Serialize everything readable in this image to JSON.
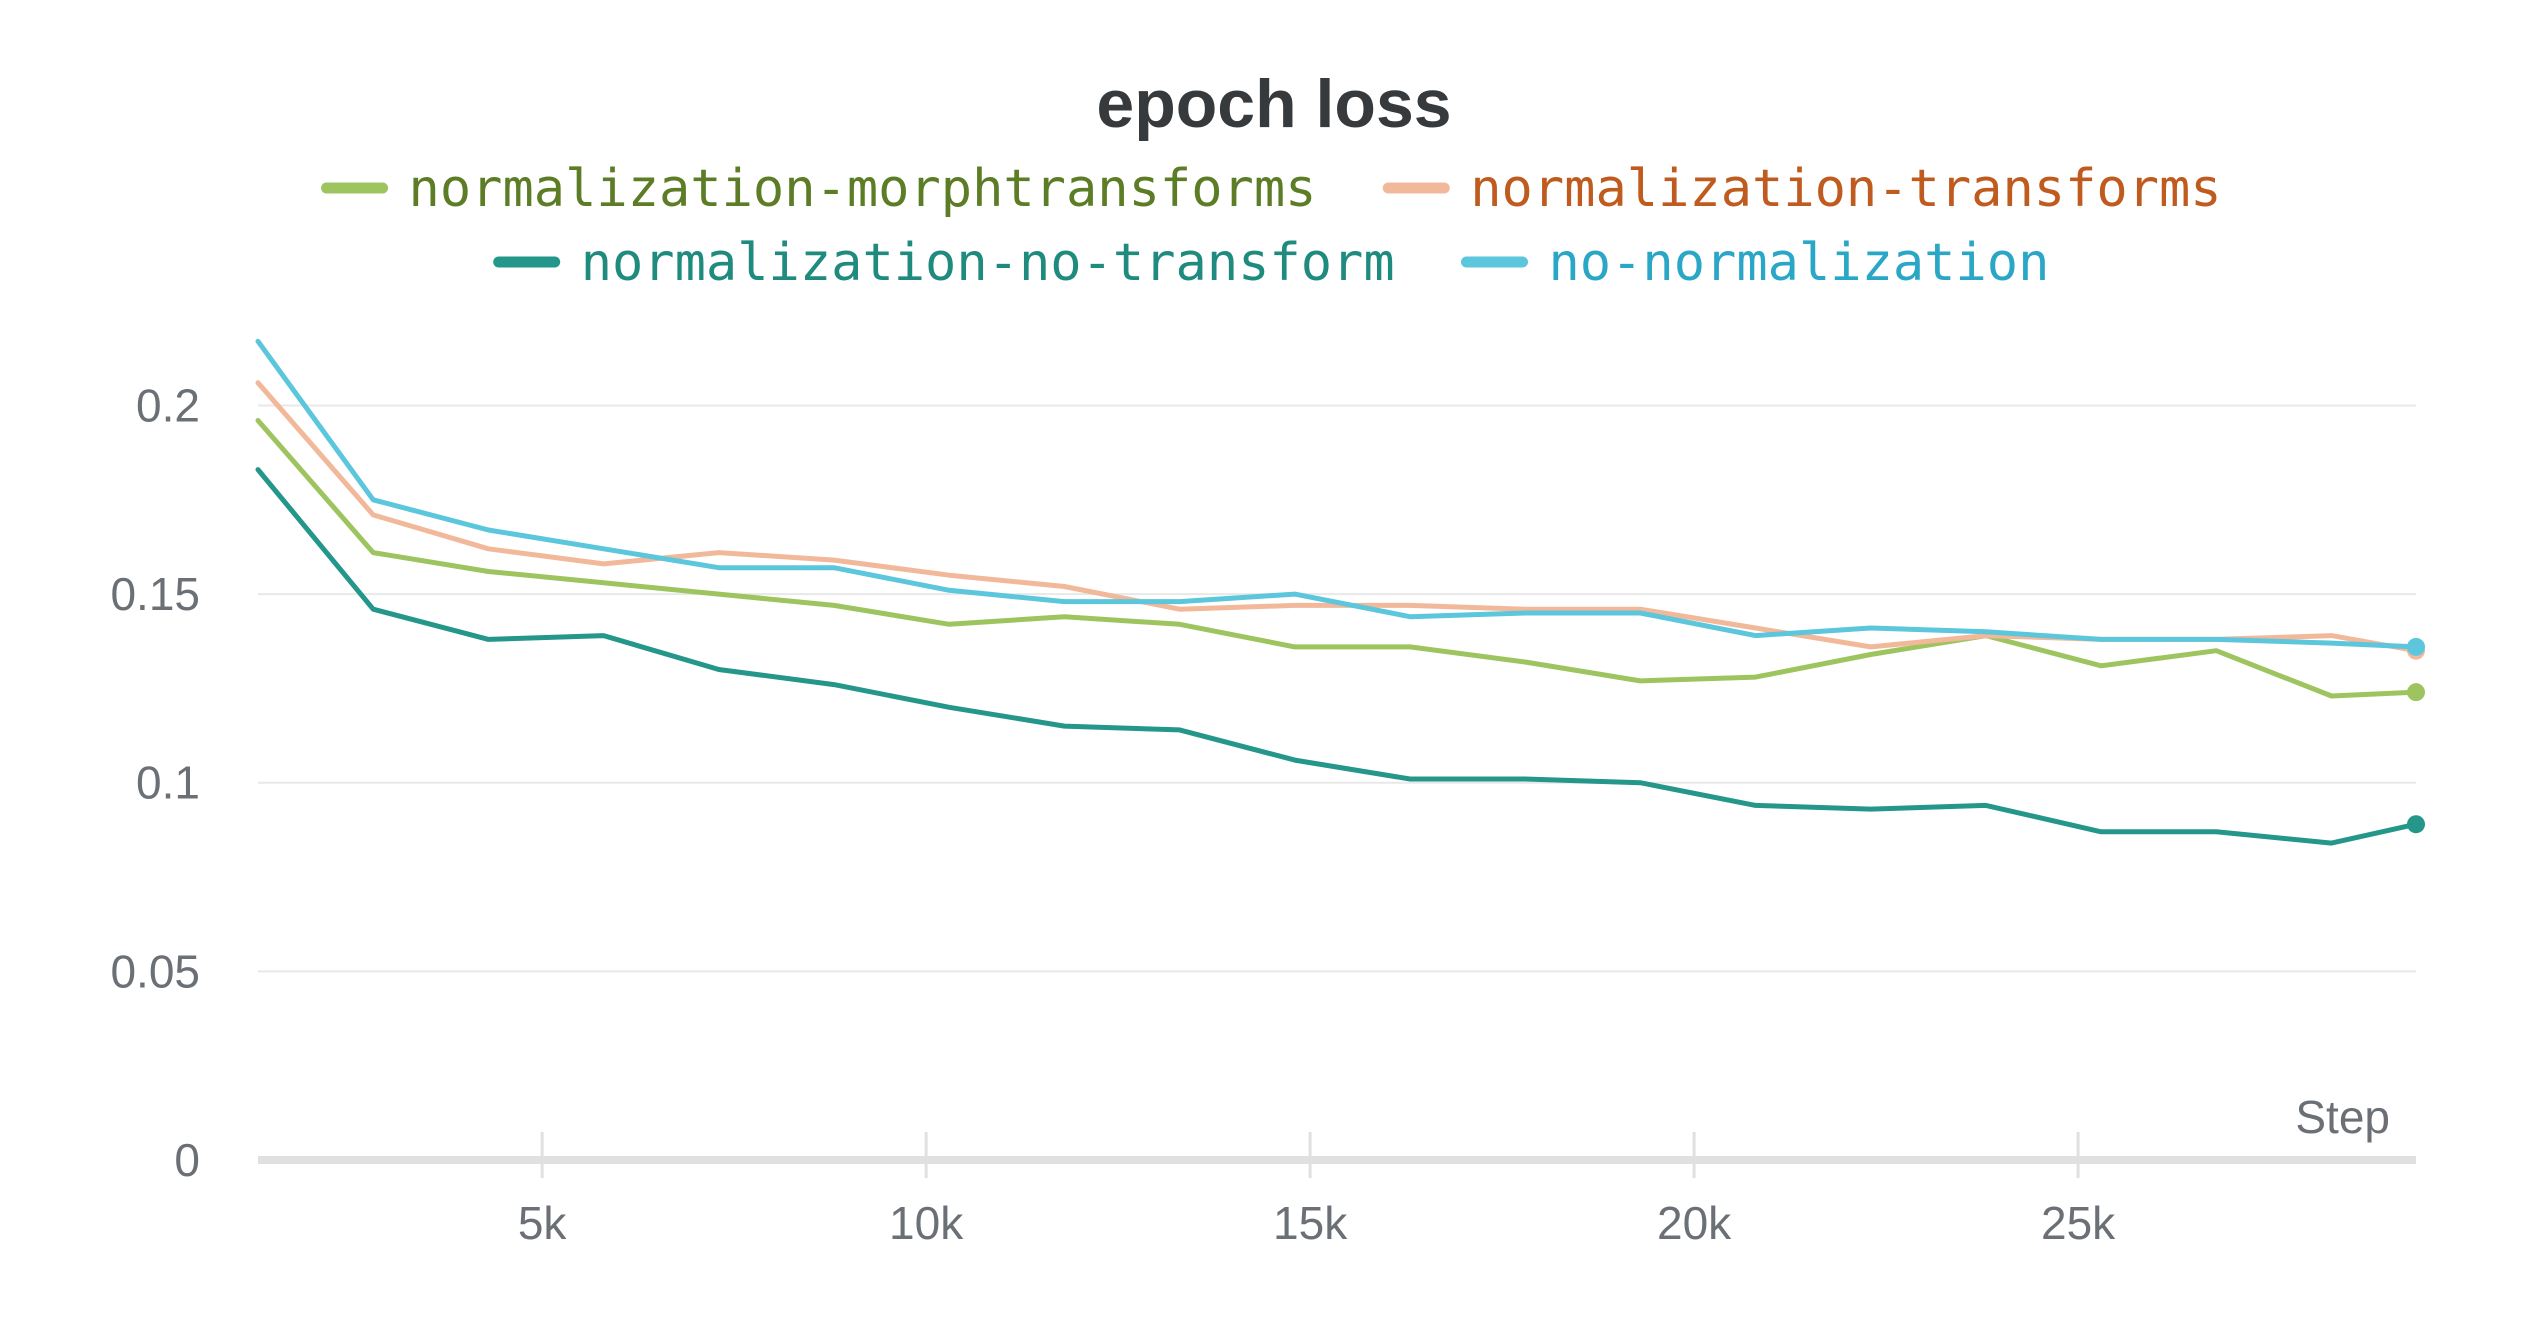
{
  "chart_data": {
    "type": "line",
    "title": "epoch loss",
    "xlabel": "Step",
    "ylabel": "",
    "xlim": [
      1300,
      29400
    ],
    "ylim": [
      0,
      0.22
    ],
    "x_ticks": [
      {
        "value": 5000,
        "label": "5k"
      },
      {
        "value": 10000,
        "label": "10k"
      },
      {
        "value": 15000,
        "label": "15k"
      },
      {
        "value": 20000,
        "label": "20k"
      },
      {
        "value": 25000,
        "label": "25k"
      }
    ],
    "y_ticks": [
      {
        "value": 0,
        "label": "0"
      },
      {
        "value": 0.05,
        "label": "0.05"
      },
      {
        "value": 0.1,
        "label": "0.1"
      },
      {
        "value": 0.15,
        "label": "0.15"
      },
      {
        "value": 0.2,
        "label": "0.2"
      }
    ],
    "grid": true,
    "legend_position": "top-center",
    "x": [
      1300,
      2800,
      4300,
      5800,
      7300,
      8800,
      10300,
      11800,
      13300,
      14800,
      16300,
      17800,
      19300,
      20800,
      22300,
      23800,
      25300,
      26800,
      28300,
      29400
    ],
    "series": [
      {
        "name": "normalization-morphtransforms",
        "color": "#9dc45f",
        "text_color": "#5c7d25",
        "end_marker": true,
        "values": [
          0.196,
          0.161,
          0.156,
          0.153,
          0.15,
          0.147,
          0.142,
          0.144,
          0.142,
          0.136,
          0.136,
          0.132,
          0.127,
          0.128,
          0.134,
          0.139,
          0.131,
          0.135,
          0.123,
          0.124
        ]
      },
      {
        "name": "normalization-transforms",
        "color": "#f2b89a",
        "text_color": "#bf5b1f",
        "end_marker": true,
        "values": [
          0.206,
          0.171,
          0.162,
          0.158,
          0.161,
          0.159,
          0.155,
          0.152,
          0.146,
          0.147,
          0.147,
          0.146,
          0.146,
          0.141,
          0.136,
          0.139,
          0.138,
          0.138,
          0.139,
          0.135
        ]
      },
      {
        "name": "normalization-no-transform",
        "color": "#24968a",
        "text_color": "#1f8a7e",
        "end_marker": true,
        "values": [
          0.183,
          0.146,
          0.138,
          0.139,
          0.13,
          0.126,
          0.12,
          0.115,
          0.114,
          0.106,
          0.101,
          0.101,
          0.1,
          0.094,
          0.093,
          0.094,
          0.087,
          0.087,
          0.084,
          0.089
        ]
      },
      {
        "name": "no-normalization",
        "color": "#5bc6dc",
        "text_color": "#2aa6c6",
        "end_marker": true,
        "values": [
          0.217,
          0.175,
          0.167,
          0.162,
          0.157,
          0.157,
          0.151,
          0.148,
          0.148,
          0.15,
          0.144,
          0.145,
          0.145,
          0.139,
          0.141,
          0.14,
          0.138,
          0.138,
          0.137,
          0.136
        ]
      }
    ]
  }
}
